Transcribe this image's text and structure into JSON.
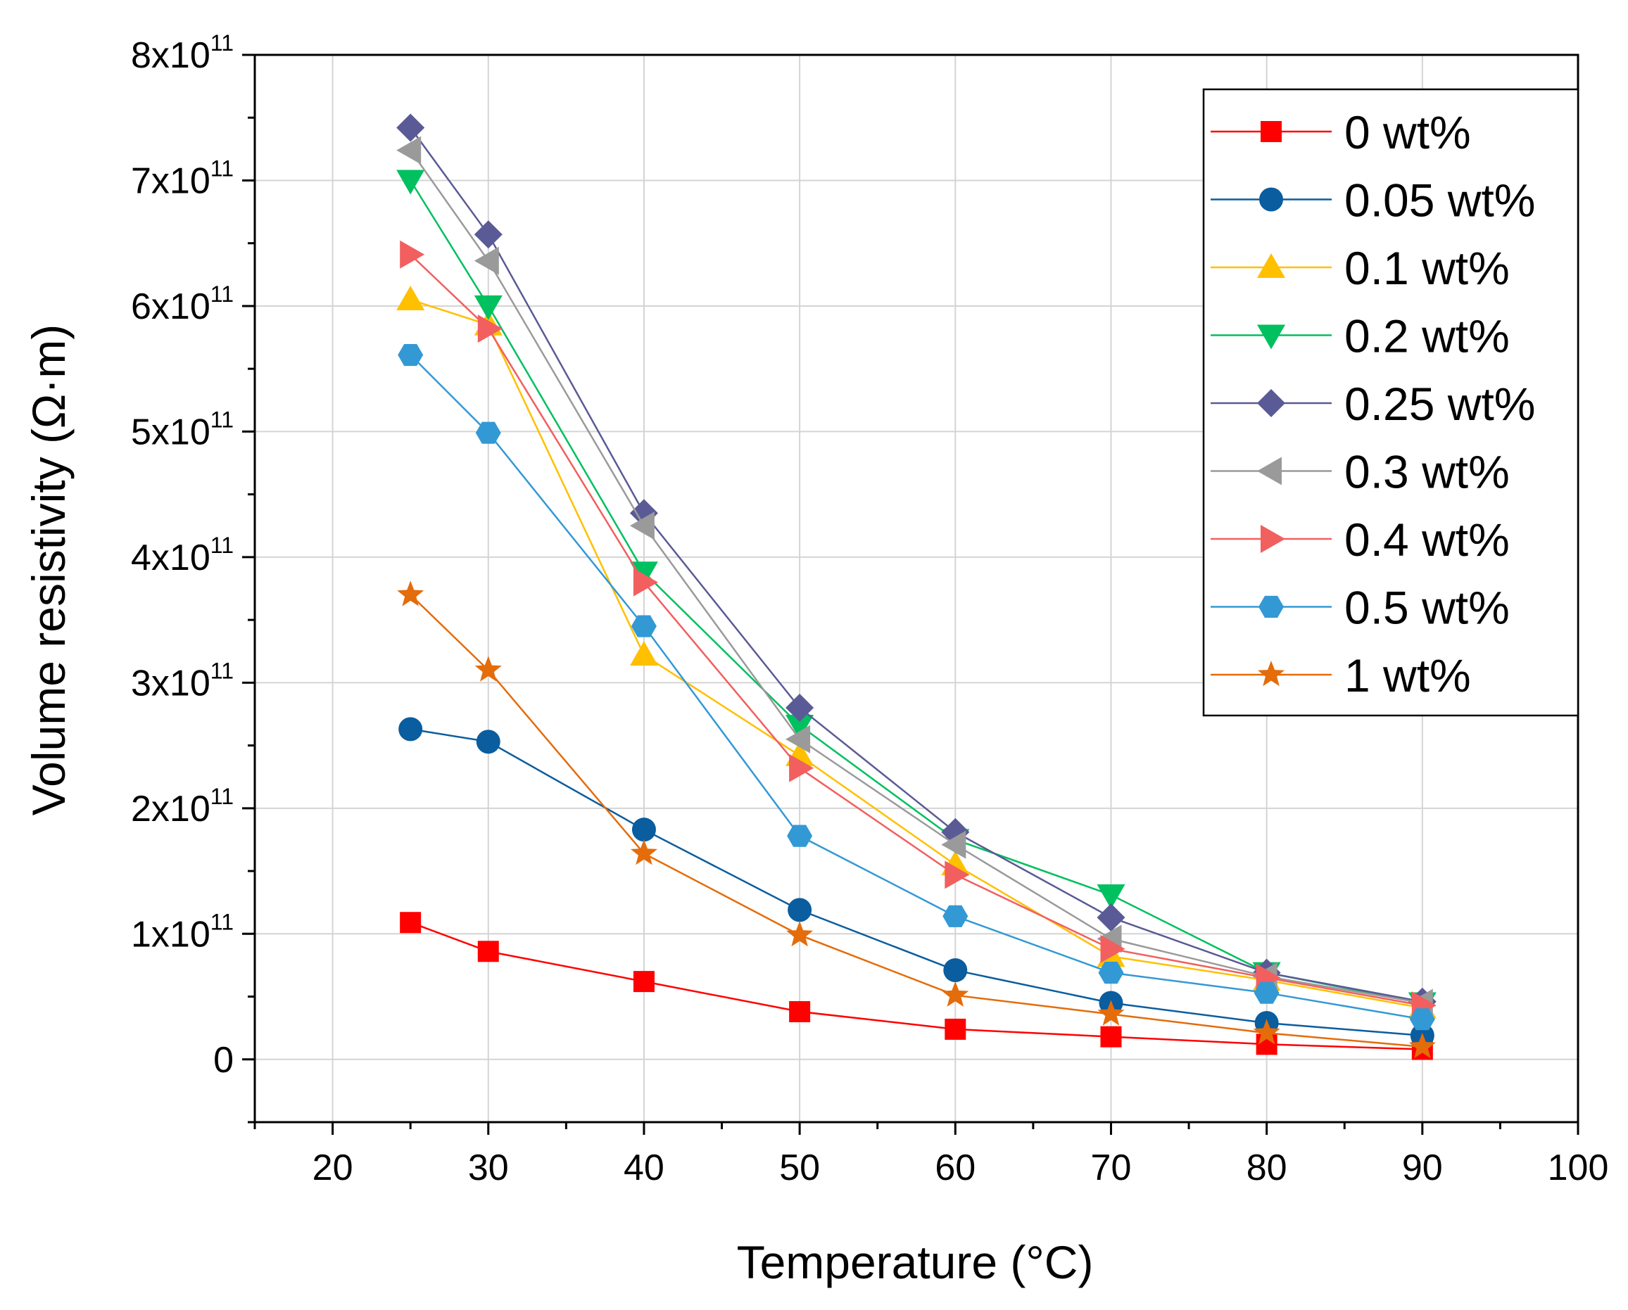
{
  "chart_data": {
    "type": "line",
    "title": "",
    "xlabel": "Temperature (°C)",
    "ylabel": "Volume resistivity (Ω·m)",
    "xlim": [
      15,
      100
    ],
    "ylim": [
      -0.5,
      8
    ],
    "x_ticks": [
      20,
      30,
      40,
      50,
      60,
      70,
      80,
      90,
      100
    ],
    "x_tick_labels": [
      "20",
      "30",
      "40",
      "50",
      "60",
      "70",
      "80",
      "90",
      "100"
    ],
    "y_ticks": [
      0,
      1,
      2,
      3,
      4,
      5,
      6,
      7,
      8
    ],
    "y_tick_labels": [
      {
        "mantissa": "0",
        "exponent": ""
      },
      {
        "mantissa": "1x10",
        "exponent": "11"
      },
      {
        "mantissa": "2x10",
        "exponent": "11"
      },
      {
        "mantissa": "3x10",
        "exponent": "11"
      },
      {
        "mantissa": "4x10",
        "exponent": "11"
      },
      {
        "mantissa": "5x10",
        "exponent": "11"
      },
      {
        "mantissa": "6x10",
        "exponent": "11"
      },
      {
        "mantissa": "7x10",
        "exponent": "11"
      },
      {
        "mantissa": "8x10",
        "exponent": "11"
      }
    ],
    "y_unit_multiplier": "1e11",
    "grid": true,
    "legend_position": "top-right",
    "x": [
      25,
      30,
      40,
      50,
      60,
      70,
      80,
      90
    ],
    "series": [
      {
        "name": "0 wt%",
        "color": "#ff0000",
        "marker": "square",
        "values": [
          1.09,
          0.86,
          0.62,
          0.38,
          0.24,
          0.18,
          0.12,
          0.08
        ]
      },
      {
        "name": "0.05 wt%",
        "color": "#0a5d9e",
        "marker": "circle",
        "values": [
          2.63,
          2.53,
          1.83,
          1.19,
          0.71,
          0.45,
          0.29,
          0.19
        ]
      },
      {
        "name": "0.1 wt%",
        "color": "#ffc000",
        "marker": "triangle-up",
        "values": [
          6.05,
          5.85,
          3.22,
          2.42,
          1.55,
          0.82,
          0.63,
          0.41
        ]
      },
      {
        "name": "0.2 wt%",
        "color": "#00c060",
        "marker": "triangle-down",
        "values": [
          7.0,
          6.0,
          3.88,
          2.66,
          1.75,
          1.31,
          0.69,
          0.45
        ]
      },
      {
        "name": "0.25 wt%",
        "color": "#5a5a96",
        "marker": "diamond",
        "values": [
          7.42,
          6.57,
          4.35,
          2.8,
          1.81,
          1.13,
          0.69,
          0.46
        ]
      },
      {
        "name": "0.3 wt%",
        "color": "#9a9a9a",
        "marker": "triangle-left",
        "values": [
          7.24,
          6.36,
          4.25,
          2.55,
          1.71,
          0.96,
          0.66,
          0.45
        ]
      },
      {
        "name": "0.4 wt%",
        "color": "#f25f5f",
        "marker": "triangle-right",
        "values": [
          6.41,
          5.82,
          3.8,
          2.32,
          1.47,
          0.88,
          0.65,
          0.43
        ]
      },
      {
        "name": "0.5 wt%",
        "color": "#3399d5",
        "marker": "hexagon",
        "values": [
          5.61,
          4.99,
          3.45,
          1.78,
          1.14,
          0.69,
          0.53,
          0.32
        ]
      },
      {
        "name": "1 wt%",
        "color": "#e46c0a",
        "marker": "star",
        "values": [
          3.7,
          3.1,
          1.64,
          0.99,
          0.51,
          0.36,
          0.21,
          0.1
        ]
      }
    ]
  }
}
